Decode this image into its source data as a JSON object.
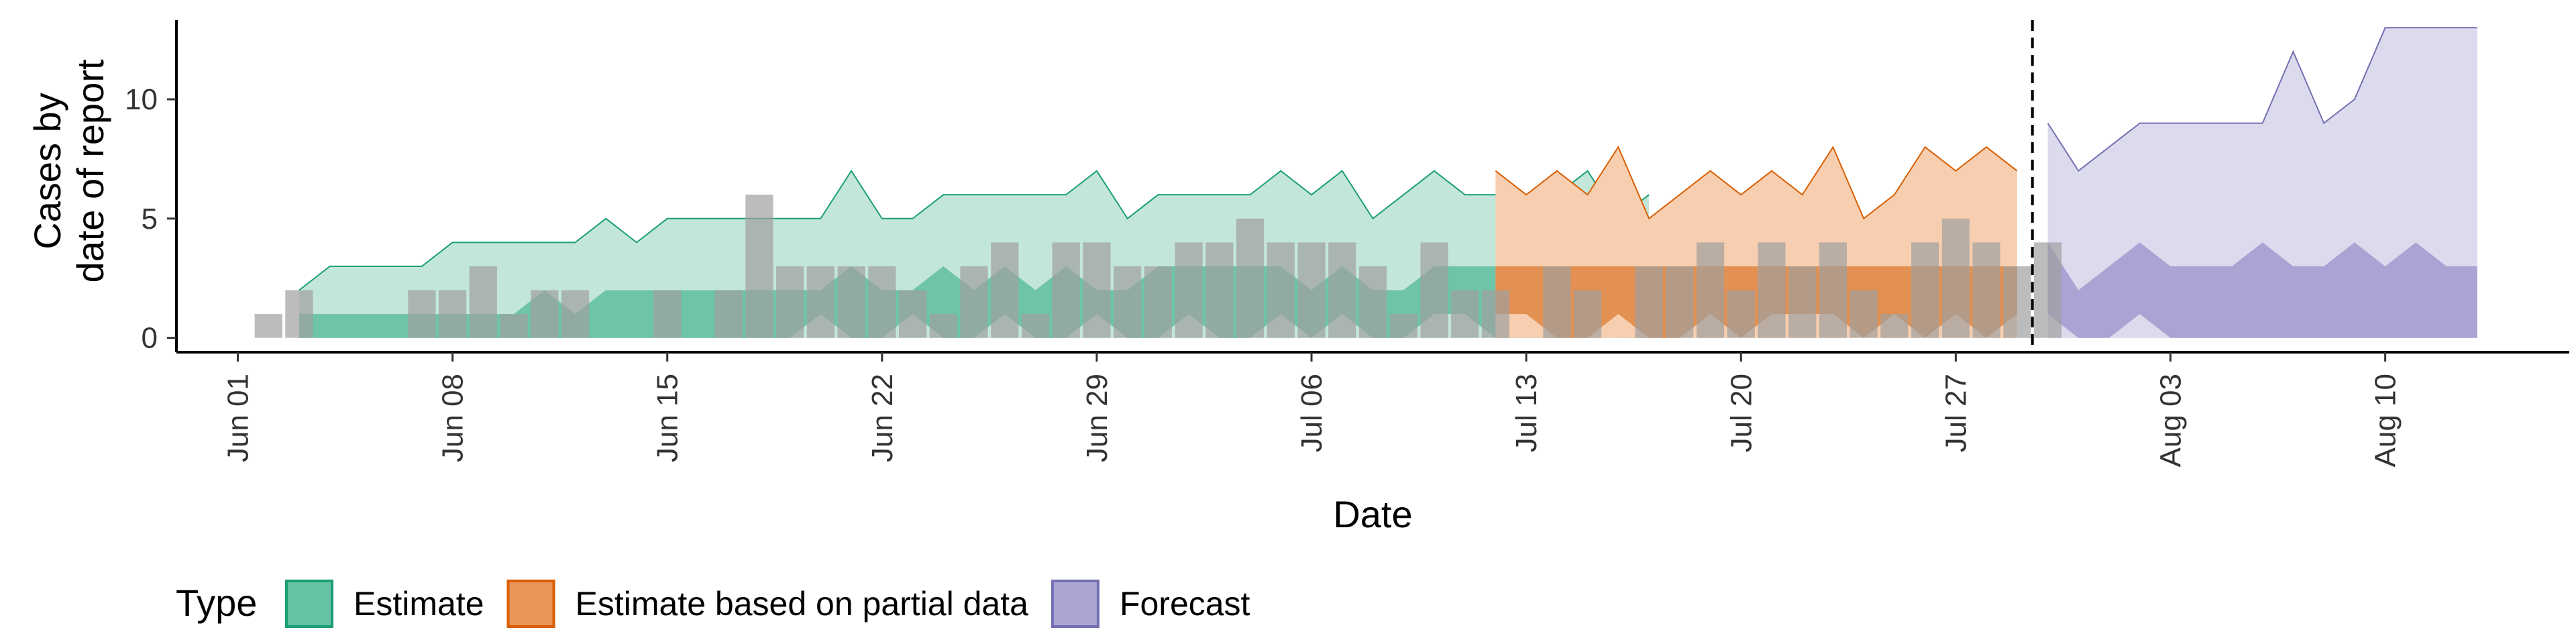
{
  "chart_data": {
    "type": "area",
    "xlabel": "Date",
    "ylabel_lines": [
      "Cases by",
      "date of report"
    ],
    "x_range": [
      "2020-05-30",
      "2020-08-16"
    ],
    "ylim": [
      -0.6,
      13.6
    ],
    "y_ticks": [
      0,
      5,
      10
    ],
    "x_ticks": [
      {
        "date": "2020-06-01",
        "label": "Jun 01"
      },
      {
        "date": "2020-06-08",
        "label": "Jun 08"
      },
      {
        "date": "2020-06-15",
        "label": "Jun 15"
      },
      {
        "date": "2020-06-22",
        "label": "Jun 22"
      },
      {
        "date": "2020-06-29",
        "label": "Jun 29"
      },
      {
        "date": "2020-07-06",
        "label": "Jul 06"
      },
      {
        "date": "2020-07-13",
        "label": "Jul 13"
      },
      {
        "date": "2020-07-20",
        "label": "Jul 20"
      },
      {
        "date": "2020-07-27",
        "label": "Jul 27"
      },
      {
        "date": "2020-08-03",
        "label": "Aug 03"
      },
      {
        "date": "2020-08-10",
        "label": "Aug 10"
      }
    ],
    "forecast_date": "2020-07-29",
    "grid": false,
    "legend": {
      "position": "bottom",
      "title": "Type",
      "entries": [
        {
          "label": "Estimate",
          "fill": "#66c2a5",
          "stroke": "#1b9e77"
        },
        {
          "label": "Estimate based on partial data",
          "fill": "#e8955a",
          "stroke": "#d95f02"
        },
        {
          "label": "Forecast",
          "fill": "#aaa5d2",
          "stroke": "#7570b3"
        }
      ]
    },
    "reported_cases": {
      "color": "#a0a0a0",
      "start_date": "2020-06-02",
      "values": [
        1,
        2,
        0,
        0,
        0,
        2,
        2,
        3,
        1,
        2,
        2,
        0,
        0,
        2,
        0,
        2,
        6,
        3,
        3,
        3,
        3,
        2,
        1,
        3,
        4,
        1,
        4,
        4,
        3,
        3,
        4,
        4,
        5,
        4,
        4,
        4,
        3,
        1,
        4,
        2,
        2,
        0,
        3,
        2,
        0,
        3,
        3,
        4,
        2,
        4,
        3,
        4,
        2,
        1,
        4,
        5,
        4,
        3,
        4
      ]
    },
    "series": [
      {
        "name": "Estimate",
        "start_date": "2020-06-03",
        "outer_fill": "#c3e6da",
        "outer_stroke": "#1b9e77",
        "inner_fill": "#6ec4a7",
        "upper90": [
          2,
          3,
          3,
          3,
          3,
          4,
          4,
          4,
          4,
          4,
          5,
          4,
          5,
          5,
          5,
          5,
          5,
          5,
          7,
          5,
          5,
          6,
          6,
          6,
          6,
          6,
          7,
          5,
          6,
          6,
          6,
          6,
          7,
          6,
          7,
          5,
          6,
          7,
          6,
          6,
          6,
          6,
          7,
          5,
          6
        ],
        "lower90": [
          0,
          0,
          0,
          0,
          0,
          0,
          0,
          0,
          0,
          0,
          0,
          0,
          0,
          0,
          0,
          0,
          0,
          0,
          0,
          0,
          0,
          0,
          0,
          0,
          0,
          0,
          0,
          0,
          0,
          0,
          0,
          0,
          0,
          0,
          0,
          0,
          0,
          0,
          0,
          0,
          0,
          0,
          0,
          0,
          0
        ],
        "upper50": [
          1,
          1,
          1,
          1,
          1,
          1,
          1,
          1,
          2,
          1,
          2,
          2,
          2,
          2,
          2,
          2,
          2,
          2,
          3,
          2,
          2,
          3,
          2,
          3,
          2,
          3,
          2,
          2,
          3,
          3,
          3,
          3,
          3,
          2,
          3,
          2,
          2,
          3,
          3,
          3,
          3,
          2,
          3,
          2,
          2
        ],
        "lower50": [
          0,
          0,
          0,
          0,
          0,
          0,
          0,
          0,
          0,
          0,
          0,
          0,
          0,
          0,
          0,
          0,
          0,
          1,
          0,
          0,
          1,
          0,
          0,
          1,
          0,
          0,
          1,
          0,
          0,
          1,
          0,
          0,
          1,
          0,
          1,
          0,
          0,
          1,
          1,
          0,
          0,
          0,
          1,
          0,
          0
        ]
      },
      {
        "name": "Estimate based on partial data",
        "start_date": "2020-07-12",
        "outer_fill": "#f7cfb0",
        "outer_stroke": "#d95f02",
        "inner_fill": "#e29152",
        "upper90": [
          7,
          6,
          7,
          6,
          8,
          5,
          6,
          7,
          6,
          7,
          6,
          8,
          5,
          6,
          8,
          7,
          8,
          7
        ],
        "lower90": [
          0,
          0,
          0,
          0,
          0,
          0,
          0,
          0,
          0,
          0,
          0,
          0,
          0,
          0,
          0,
          0,
          0,
          0
        ],
        "upper50": [
          3,
          3,
          3,
          3,
          3,
          3,
          3,
          3,
          3,
          3,
          3,
          3,
          3,
          3,
          3,
          3,
          3,
          3
        ],
        "lower50": [
          1,
          1,
          0,
          0,
          1,
          0,
          0,
          1,
          0,
          1,
          1,
          1,
          0,
          1,
          0,
          1,
          0,
          1
        ]
      },
      {
        "name": "Forecast",
        "start_date": "2020-07-30",
        "outer_fill": "#dcdaed",
        "outer_stroke": "#7570b3",
        "inner_fill": "#a9a4d3",
        "upper90": [
          9,
          7,
          8,
          9,
          9,
          9,
          9,
          9,
          12,
          9,
          10,
          13,
          13,
          13,
          13
        ],
        "lower90": [
          0,
          0,
          0,
          0,
          0,
          0,
          0,
          0,
          0,
          0,
          0,
          0,
          0,
          0,
          0
        ],
        "upper50": [
          4,
          2,
          3,
          4,
          3,
          3,
          3,
          4,
          3,
          3,
          4,
          3,
          4,
          3,
          3
        ],
        "lower50": [
          1,
          0,
          0,
          1,
          0,
          0,
          0,
          0,
          0,
          0,
          0,
          0,
          0,
          0,
          0
        ]
      }
    ]
  }
}
